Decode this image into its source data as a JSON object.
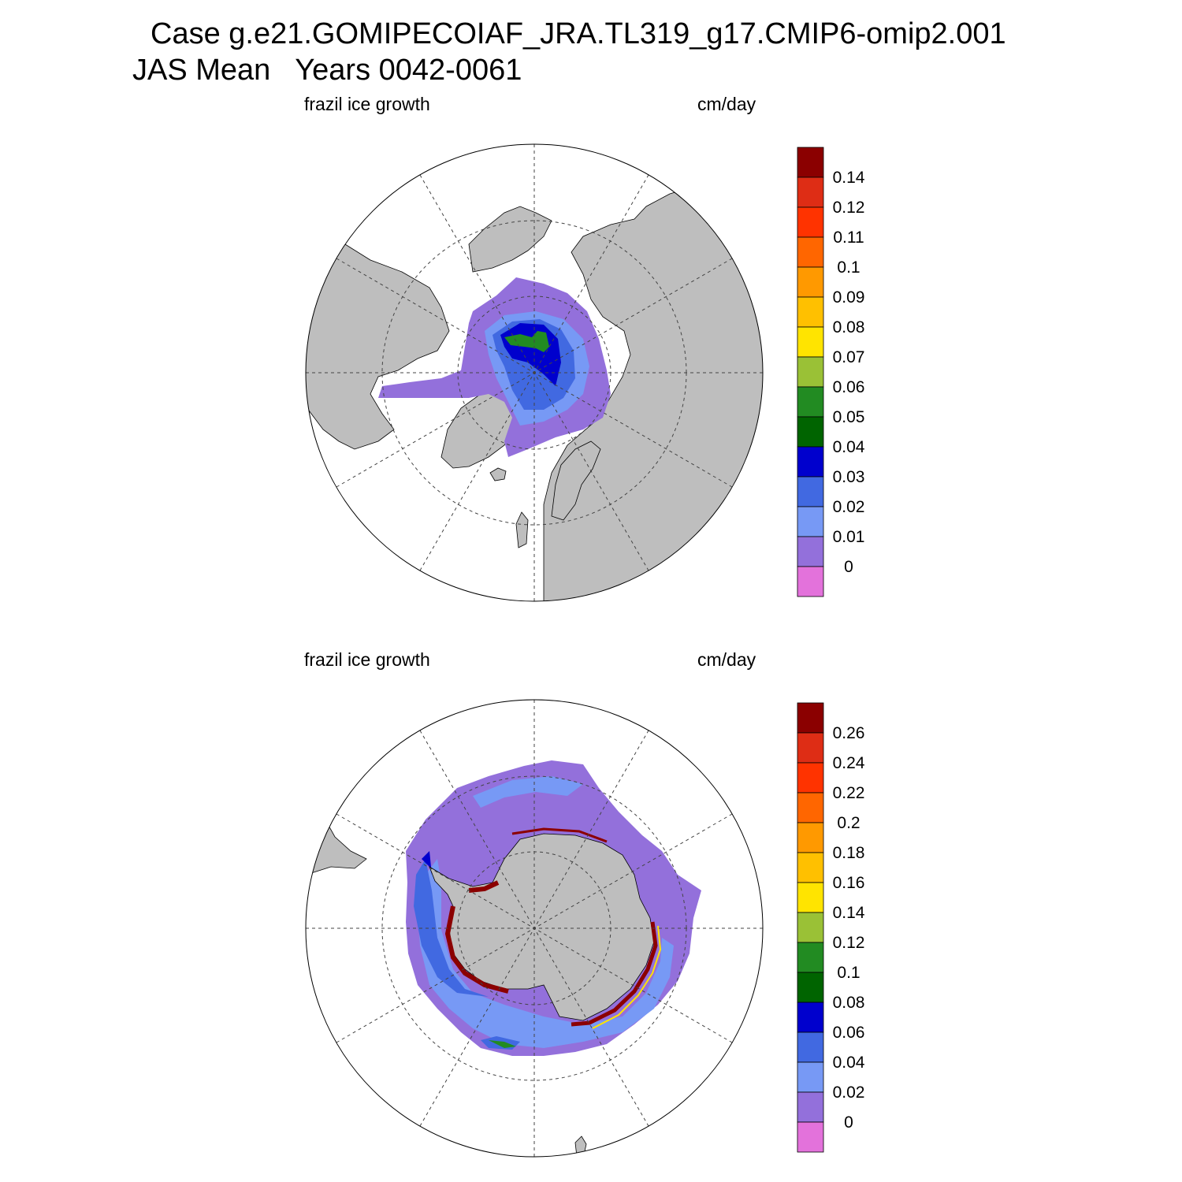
{
  "title": {
    "line1": "Case g.e21.GOMIPECOIAF_JRA.TL319_g17.CMIP6-omip2.001",
    "line2": "JAS Mean   Years 0042-0061"
  },
  "panels": [
    {
      "id": "north",
      "hemisphere": "north",
      "variable_label": "frazil ice growth",
      "units_label": "cm/day",
      "colorbar_labels": [
        "0.14",
        "0.12",
        "0.11",
        "0.1",
        "0.09",
        "0.08",
        "0.07",
        "0.06",
        "0.05",
        "0.04",
        "0.03",
        "0.02",
        "0.01",
        "0"
      ]
    },
    {
      "id": "south",
      "hemisphere": "south",
      "variable_label": "frazil ice growth",
      "units_label": "cm/day",
      "colorbar_labels": [
        "0.26",
        "0.24",
        "0.22",
        "0.2",
        "0.18",
        "0.16",
        "0.14",
        "0.12",
        "0.1",
        "0.08",
        "0.06",
        "0.04",
        "0.02",
        "0"
      ]
    }
  ],
  "colors": {
    "land": "#bebebe",
    "colorbar": [
      "#8b0000",
      "#de2d15",
      "#ff3300",
      "#ff6600",
      "#ff9900",
      "#ffc000",
      "#ffe400",
      "#9ac136",
      "#228b22",
      "#006400",
      "#0000cd",
      "#4169e1",
      "#7799f5",
      "#9370db",
      "#e372db"
    ]
  }
}
